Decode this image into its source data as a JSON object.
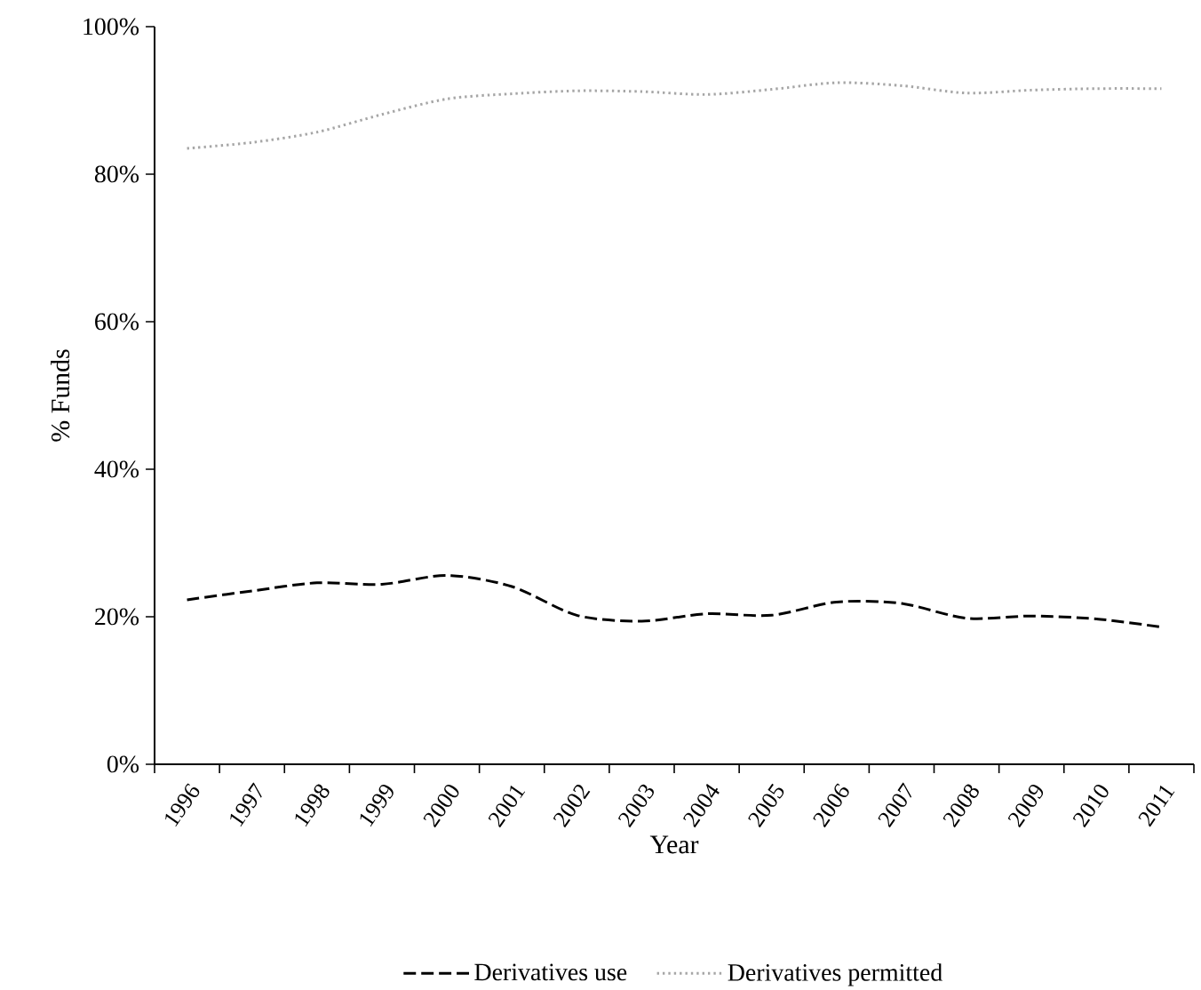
{
  "chart_data": {
    "type": "line",
    "xlabel": "Year",
    "ylabel": "% Funds",
    "categories": [
      "1996",
      "1997",
      "1998",
      "1999",
      "2000",
      "2001",
      "2002",
      "2003",
      "2004",
      "2005",
      "2006",
      "2007",
      "2008",
      "2009",
      "2010",
      "2011"
    ],
    "series": [
      {
        "name": "Derivatives use",
        "color": "#000000",
        "line_style": "dashed",
        "values": [
          22.3,
          23.5,
          24.6,
          24.4,
          25.6,
          24.1,
          20.2,
          19.4,
          20.4,
          20.2,
          22.0,
          21.8,
          19.8,
          20.1,
          19.7,
          18.6
        ]
      },
      {
        "name": "Derivatives permitted",
        "color": "#a6a6a6",
        "line_style": "dotted",
        "values": [
          83.5,
          84.3,
          85.7,
          88.1,
          90.2,
          90.9,
          91.3,
          91.2,
          90.8,
          91.5,
          92.4,
          92.0,
          91.0,
          91.4,
          91.6,
          91.6
        ]
      }
    ],
    "ylim": [
      0,
      100
    ],
    "yticks": [
      {
        "value": 0,
        "label": "0%"
      },
      {
        "value": 20,
        "label": "20%"
      },
      {
        "value": 40,
        "label": "40%"
      },
      {
        "value": 60,
        "label": "60%"
      },
      {
        "value": 80,
        "label": "80%"
      },
      {
        "value": 100,
        "label": "100%"
      }
    ],
    "grid": false,
    "legend": "bottom",
    "marker": "none"
  }
}
